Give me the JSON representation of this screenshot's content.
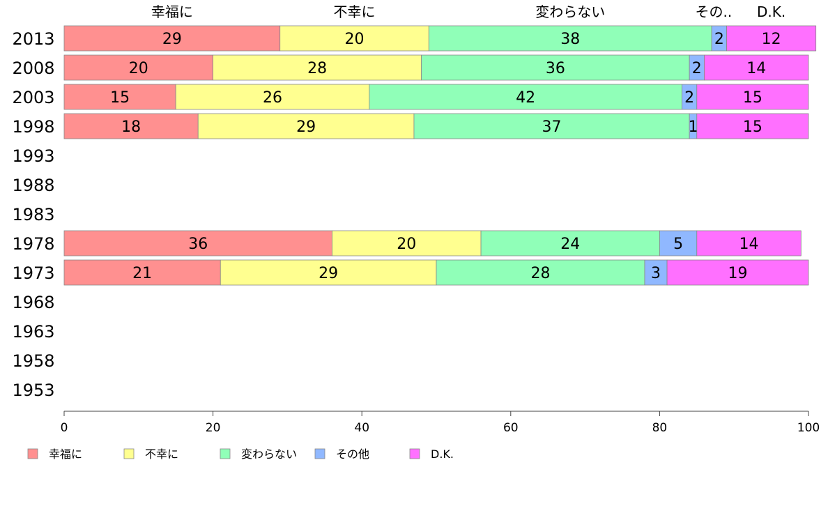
{
  "chart_data": {
    "type": "bar",
    "orientation": "horizontal",
    "stacked": true,
    "categories": [
      "2013",
      "2008",
      "2003",
      "1998",
      "1993",
      "1988",
      "1983",
      "1978",
      "1973",
      "1968",
      "1963",
      "1958",
      "1953"
    ],
    "series": [
      {
        "name": "幸福に",
        "color": "#ff9090",
        "values": [
          29,
          20,
          15,
          18,
          null,
          null,
          null,
          36,
          21,
          null,
          null,
          null,
          null
        ]
      },
      {
        "name": "不幸に",
        "color": "#ffff90",
        "values": [
          20,
          28,
          26,
          29,
          null,
          null,
          null,
          20,
          29,
          null,
          null,
          null,
          null
        ]
      },
      {
        "name": "変わらない",
        "color": "#90ffb8",
        "values": [
          38,
          36,
          42,
          37,
          null,
          null,
          null,
          24,
          28,
          null,
          null,
          null,
          null
        ]
      },
      {
        "name": "その他",
        "color": "#90b8ff",
        "values": [
          2,
          2,
          2,
          1,
          null,
          null,
          null,
          5,
          3,
          null,
          null,
          null,
          null
        ]
      },
      {
        "name": "D.K.",
        "color": "#ff70ff",
        "values": [
          12,
          14,
          15,
          15,
          null,
          null,
          null,
          14,
          19,
          null,
          null,
          null,
          null
        ]
      }
    ],
    "top_labels": [
      "幸福に",
      "不幸に",
      "変わらない",
      "その..",
      "D.K."
    ],
    "xlim": [
      0,
      100
    ],
    "xticks": [
      0,
      20,
      40,
      60,
      80,
      100
    ],
    "grid": false,
    "legend_position": "bottom-left"
  }
}
